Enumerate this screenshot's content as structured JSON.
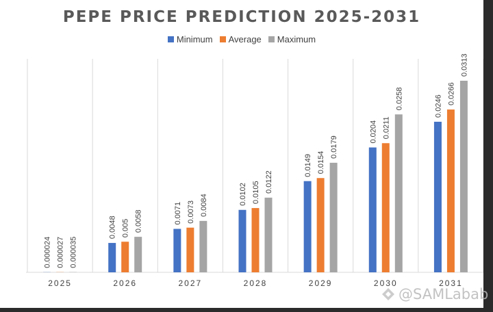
{
  "chart_data": {
    "type": "bar",
    "title": "PEPE PRICE PREDICTION 2025-2031",
    "categories": [
      "2025",
      "2026",
      "2027",
      "2028",
      "2029",
      "2030",
      "2031"
    ],
    "series": [
      {
        "name": "Minimum",
        "color": "#4472C4",
        "values": [
          2.4e-05,
          0.0048,
          0.0071,
          0.0102,
          0.0149,
          0.0204,
          0.0246
        ],
        "labels": [
          "0.000024",
          "0.0048",
          "0.0071",
          "0.0102",
          "0.0149",
          "0.0204",
          "0.0246"
        ]
      },
      {
        "name": "Average",
        "color": "#ED7D31",
        "values": [
          2.7e-05,
          0.005,
          0.0073,
          0.0105,
          0.0154,
          0.0211,
          0.0266
        ],
        "labels": [
          "0.000027",
          "0.005",
          "0.0073",
          "0.0105",
          "0.0154",
          "0.0211",
          "0.0266"
        ]
      },
      {
        "name": "Maximum",
        "color": "#A5A5A5",
        "values": [
          3.5e-05,
          0.0058,
          0.0084,
          0.0122,
          0.0179,
          0.0258,
          0.0313
        ],
        "labels": [
          "0.000035",
          "0.0058",
          "0.0084",
          "0.0122",
          "0.0179",
          "0.0258",
          "0.0313"
        ]
      }
    ],
    "ylim": [
      0,
      0.0313
    ],
    "legend": "top-center",
    "grid": "vertical category separators"
  },
  "watermark": "@SAMLabab"
}
